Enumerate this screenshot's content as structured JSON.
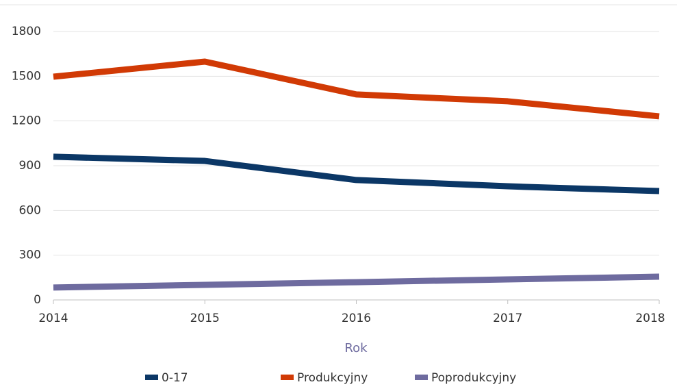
{
  "chart_data": {
    "type": "line",
    "x": [
      2014,
      2015,
      2016,
      2017,
      2018
    ],
    "xlabel": "Rok",
    "series": [
      {
        "name": "0-17",
        "color": "#0b3766",
        "values": [
          960,
          932,
          804,
          762,
          730
        ]
      },
      {
        "name": "Produkcyjny",
        "color": "#d13a05",
        "values": [
          1497,
          1598,
          1378,
          1332,
          1231
        ]
      },
      {
        "name": "Poprodukcyjny",
        "color": "#6e6b9f",
        "values": [
          83,
          101,
          119,
          138,
          156
        ]
      }
    ],
    "xlim": [
      2014,
      2018
    ],
    "xticks": [
      2014,
      2015,
      2016,
      2017,
      2018
    ],
    "ylim": [
      0,
      1800
    ],
    "yticks": [
      0,
      300,
      600,
      900,
      1200,
      1500,
      1800
    ],
    "grid": true,
    "legend": "bottom"
  }
}
